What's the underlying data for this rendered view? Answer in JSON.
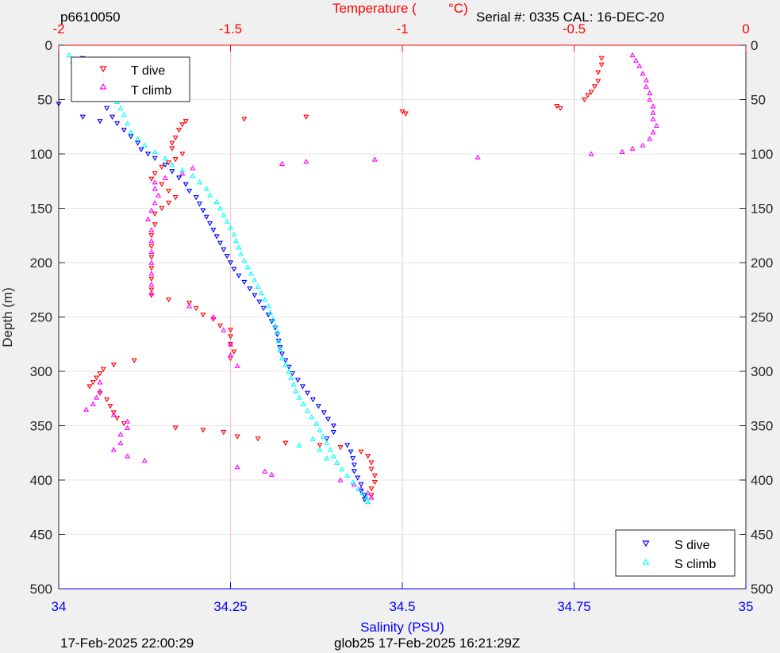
{
  "header": {
    "left_id": "p6610050",
    "serial": "Serial #: 0335  CAL: 16-DEC-20"
  },
  "footer": {
    "left_time": "17-Feb-2025 22:00:29",
    "center_info": "glob25 17-Feb-2025 16:21:29Z"
  },
  "colors": {
    "t_dive": "#ff0000",
    "t_climb": "#ff00ff",
    "s_dive": "#0000ff",
    "s_climb": "#00ffff",
    "temp_axis": "#ff0000",
    "sal_axis": "#0000ff",
    "grid": "#e6e6e6",
    "temp_grid": "#f6c6c6"
  },
  "chart_data": {
    "type": "scatter",
    "title": "",
    "ylabel": "Depth (m)",
    "xlabel_bottom": "Salinity (PSU)",
    "xlabel_top_prefix": "Temperature (",
    "xlabel_top_unit": "°C)",
    "ylim": [
      0,
      500
    ],
    "y_reversed": true,
    "y_ticks": [
      0,
      50,
      100,
      150,
      200,
      250,
      300,
      350,
      400,
      450,
      500
    ],
    "y_tick_labels": [
      "0",
      "50",
      "100",
      "150",
      "200",
      "250",
      "300",
      "350",
      "400",
      "450",
      "500"
    ],
    "x_bottom_lim": [
      34,
      35
    ],
    "x_bottom_ticks": [
      34,
      34.25,
      34.5,
      34.75,
      35
    ],
    "x_bottom_tick_labels": [
      "34",
      "34.25",
      "34.5",
      "34.75",
      "35"
    ],
    "x_top_lim": [
      -2,
      0
    ],
    "x_top_ticks": [
      -2,
      -1.5,
      -1,
      -0.5,
      0
    ],
    "x_top_tick_labels": [
      "-2",
      "-1.5",
      "-1",
      "-0.5",
      "0"
    ],
    "grid": true,
    "legends": [
      {
        "placement": "top-left",
        "entries": [
          "T dive",
          "T climb"
        ]
      },
      {
        "placement": "bottom-right",
        "entries": [
          "S dive",
          "S climb"
        ]
      }
    ],
    "series": [
      {
        "name": "T dive",
        "axis": "top",
        "marker": "triangle-down",
        "points": [
          [
            -0.42,
            12
          ],
          [
            -0.42,
            18
          ],
          [
            -0.43,
            25
          ],
          [
            -0.43,
            33
          ],
          [
            -0.44,
            38
          ],
          [
            -0.45,
            43
          ],
          [
            -0.46,
            46
          ],
          [
            -0.47,
            50
          ],
          [
            -0.55,
            56
          ],
          [
            -0.54,
            58
          ],
          [
            -1.0,
            61
          ],
          [
            -0.99,
            63
          ],
          [
            -1.28,
            66
          ],
          [
            -1.46,
            68
          ],
          [
            -1.63,
            70
          ],
          [
            -1.64,
            73
          ],
          [
            -1.65,
            78
          ],
          [
            -1.66,
            85
          ],
          [
            -1.67,
            90
          ],
          [
            -1.67,
            95
          ],
          [
            -1.64,
            100
          ],
          [
            -1.66,
            105
          ],
          [
            -1.68,
            108
          ],
          [
            -1.7,
            112
          ],
          [
            -1.72,
            118
          ],
          [
            -1.73,
            123
          ],
          [
            -1.7,
            128
          ],
          [
            -1.68,
            134
          ],
          [
            -1.66,
            140
          ],
          [
            -1.68,
            145
          ],
          [
            -1.7,
            150
          ],
          [
            -1.72,
            155
          ],
          [
            -1.72,
            165
          ],
          [
            -1.73,
            175
          ],
          [
            -1.73,
            185
          ],
          [
            -1.73,
            195
          ],
          [
            -1.73,
            205
          ],
          [
            -1.73,
            215
          ],
          [
            -1.73,
            225
          ],
          [
            -1.73,
            230
          ],
          [
            -1.68,
            234
          ],
          [
            -1.62,
            237
          ],
          [
            -1.6,
            242
          ],
          [
            -1.58,
            248
          ],
          [
            -1.55,
            252
          ],
          [
            -1.53,
            258
          ],
          [
            -1.5,
            262
          ],
          [
            -1.5,
            268
          ],
          [
            -1.5,
            275
          ],
          [
            -1.49,
            282
          ],
          [
            -1.5,
            288
          ],
          [
            -1.78,
            290
          ],
          [
            -1.84,
            294
          ],
          [
            -1.87,
            298
          ],
          [
            -1.88,
            302
          ],
          [
            -1.89,
            306
          ],
          [
            -1.9,
            310
          ],
          [
            -1.91,
            314
          ],
          [
            -1.88,
            320
          ],
          [
            -1.86,
            326
          ],
          [
            -1.85,
            332
          ],
          [
            -1.84,
            338
          ],
          [
            -1.83,
            343
          ],
          [
            -1.81,
            348
          ],
          [
            -1.66,
            352
          ],
          [
            -1.58,
            354
          ],
          [
            -1.52,
            356
          ],
          [
            -1.48,
            360
          ],
          [
            -1.42,
            362
          ],
          [
            -1.34,
            366
          ],
          [
            -1.24,
            368
          ],
          [
            -1.18,
            370
          ],
          [
            -1.12,
            374
          ],
          [
            -1.1,
            378
          ],
          [
            -1.09,
            384
          ],
          [
            -1.09,
            390
          ],
          [
            -1.08,
            396
          ],
          [
            -1.08,
            402
          ],
          [
            -1.09,
            408
          ],
          [
            -1.09,
            414
          ]
        ]
      },
      {
        "name": "T climb",
        "axis": "top",
        "marker": "triangle-up",
        "points": [
          [
            -0.33,
            9
          ],
          [
            -0.32,
            14
          ],
          [
            -0.31,
            19
          ],
          [
            -0.3,
            26
          ],
          [
            -0.29,
            32
          ],
          [
            -0.29,
            38
          ],
          [
            -0.28,
            44
          ],
          [
            -0.28,
            50
          ],
          [
            -0.27,
            56
          ],
          [
            -0.27,
            62
          ],
          [
            -0.27,
            68
          ],
          [
            -0.26,
            74
          ],
          [
            -0.27,
            80
          ],
          [
            -0.28,
            86
          ],
          [
            -0.3,
            92
          ],
          [
            -0.33,
            95
          ],
          [
            -0.36,
            98
          ],
          [
            -0.45,
            100
          ],
          [
            -0.78,
            103
          ],
          [
            -1.08,
            105
          ],
          [
            -1.28,
            107
          ],
          [
            -1.35,
            109
          ],
          [
            -1.61,
            113
          ],
          [
            -1.64,
            118
          ],
          [
            -1.69,
            122
          ],
          [
            -1.72,
            126
          ],
          [
            -1.72,
            132
          ],
          [
            -1.71,
            138
          ],
          [
            -1.72,
            145
          ],
          [
            -1.73,
            152
          ],
          [
            -1.74,
            160
          ],
          [
            -1.73,
            170
          ],
          [
            -1.73,
            180
          ],
          [
            -1.73,
            190
          ],
          [
            -1.73,
            200
          ],
          [
            -1.73,
            210
          ],
          [
            -1.73,
            220
          ],
          [
            -1.73,
            228
          ],
          [
            -1.62,
            240
          ],
          [
            -1.55,
            250
          ],
          [
            -1.52,
            262
          ],
          [
            -1.5,
            275
          ],
          [
            -1.5,
            285
          ],
          [
            -1.48,
            295
          ],
          [
            -1.88,
            310
          ],
          [
            -1.88,
            318
          ],
          [
            -1.89,
            324
          ],
          [
            -1.9,
            330
          ],
          [
            -1.92,
            335
          ],
          [
            -1.84,
            340
          ],
          [
            -1.8,
            346
          ],
          [
            -1.8,
            352
          ],
          [
            -1.82,
            358
          ],
          [
            -1.82,
            366
          ],
          [
            -1.84,
            372
          ],
          [
            -1.8,
            378
          ],
          [
            -1.75,
            382
          ],
          [
            -1.48,
            388
          ],
          [
            -1.4,
            392
          ],
          [
            -1.38,
            395
          ],
          [
            -1.18,
            400
          ],
          [
            -1.14,
            404
          ],
          [
            -1.12,
            408
          ],
          [
            -1.1,
            412
          ],
          [
            -1.09,
            416
          ],
          [
            -1.1,
            420
          ]
        ]
      },
      {
        "name": "S dive",
        "axis": "bottom",
        "marker": "triangle-down",
        "points": [
          [
            34.035,
            12
          ],
          [
            34.04,
            25
          ],
          [
            34.045,
            35
          ],
          [
            34.052,
            42
          ],
          [
            34.06,
            50
          ],
          [
            34.07,
            58
          ],
          [
            34.078,
            66
          ],
          [
            34.085,
            72
          ],
          [
            34.095,
            78
          ],
          [
            34.105,
            84
          ],
          [
            34.115,
            90
          ],
          [
            34.12,
            96
          ],
          [
            34.13,
            100
          ],
          [
            34.14,
            104
          ],
          [
            34.155,
            110
          ],
          [
            34.165,
            116
          ],
          [
            34.175,
            122
          ],
          [
            34.185,
            128
          ],
          [
            34.19,
            134
          ],
          [
            34.2,
            140
          ],
          [
            34.205,
            146
          ],
          [
            34.21,
            152
          ],
          [
            34.215,
            158
          ],
          [
            34.22,
            164
          ],
          [
            34.225,
            170
          ],
          [
            34.23,
            176
          ],
          [
            34.235,
            182
          ],
          [
            34.24,
            188
          ],
          [
            34.245,
            194
          ],
          [
            34.25,
            200
          ],
          [
            34.255,
            206
          ],
          [
            34.262,
            212
          ],
          [
            34.27,
            218
          ],
          [
            34.278,
            224
          ],
          [
            34.285,
            230
          ],
          [
            34.292,
            236
          ],
          [
            34.298,
            242
          ],
          [
            34.305,
            248
          ],
          [
            34.31,
            254
          ],
          [
            34.315,
            260
          ],
          [
            34.318,
            266
          ],
          [
            34.32,
            272
          ],
          [
            34.322,
            278
          ],
          [
            34.325,
            284
          ],
          [
            34.33,
            290
          ],
          [
            34.335,
            296
          ],
          [
            34.34,
            302
          ],
          [
            34.348,
            308
          ],
          [
            34.355,
            314
          ],
          [
            34.362,
            320
          ],
          [
            34.37,
            326
          ],
          [
            34.378,
            332
          ],
          [
            34.386,
            338
          ],
          [
            34.392,
            344
          ],
          [
            34.4,
            350
          ],
          [
            34.4,
            356
          ],
          [
            34.39,
            362
          ],
          [
            34.42,
            368
          ],
          [
            34.425,
            374
          ],
          [
            34.428,
            380
          ],
          [
            34.43,
            386
          ],
          [
            34.43,
            392
          ],
          [
            34.435,
            398
          ],
          [
            34.44,
            404
          ],
          [
            34.44,
            410
          ],
          [
            34.445,
            414
          ],
          [
            34.445,
            418
          ],
          [
            34.0,
            54
          ],
          [
            34.035,
            66
          ],
          [
            34.06,
            70
          ]
        ]
      },
      {
        "name": "S climb",
        "axis": "bottom",
        "marker": "triangle-up",
        "points": [
          [
            34.015,
            9
          ],
          [
            34.02,
            15
          ],
          [
            34.028,
            22
          ],
          [
            34.035,
            28
          ],
          [
            34.042,
            33
          ],
          [
            34.052,
            37
          ],
          [
            34.06,
            41
          ],
          [
            34.07,
            44
          ],
          [
            34.075,
            48
          ],
          [
            34.085,
            52
          ],
          [
            34.09,
            58
          ],
          [
            34.095,
            64
          ],
          [
            34.1,
            72
          ],
          [
            34.105,
            80
          ],
          [
            34.115,
            86
          ],
          [
            34.125,
            92
          ],
          [
            34.14,
            98
          ],
          [
            34.155,
            104
          ],
          [
            34.165,
            110
          ],
          [
            34.18,
            115
          ],
          [
            34.195,
            120
          ],
          [
            34.205,
            126
          ],
          [
            34.215,
            132
          ],
          [
            34.22,
            138
          ],
          [
            34.23,
            144
          ],
          [
            34.235,
            150
          ],
          [
            34.24,
            156
          ],
          [
            34.245,
            162
          ],
          [
            34.25,
            168
          ],
          [
            34.255,
            174
          ],
          [
            34.258,
            180
          ],
          [
            34.262,
            186
          ],
          [
            34.265,
            192
          ],
          [
            34.27,
            198
          ],
          [
            34.275,
            204
          ],
          [
            34.28,
            210
          ],
          [
            34.285,
            216
          ],
          [
            34.29,
            222
          ],
          [
            34.295,
            228
          ],
          [
            34.3,
            234
          ],
          [
            34.305,
            240
          ],
          [
            34.308,
            246
          ],
          [
            34.312,
            252
          ],
          [
            34.315,
            258
          ],
          [
            34.318,
            264
          ],
          [
            34.32,
            272
          ],
          [
            34.322,
            280
          ],
          [
            34.325,
            288
          ],
          [
            34.33,
            294
          ],
          [
            34.335,
            300
          ],
          [
            34.338,
            306
          ],
          [
            34.342,
            312
          ],
          [
            34.345,
            318
          ],
          [
            34.35,
            324
          ],
          [
            34.356,
            330
          ],
          [
            34.362,
            336
          ],
          [
            34.368,
            342
          ],
          [
            34.375,
            348
          ],
          [
            34.38,
            354
          ],
          [
            34.385,
            360
          ],
          [
            34.39,
            366
          ],
          [
            34.395,
            372
          ],
          [
            34.4,
            378
          ],
          [
            34.405,
            384
          ],
          [
            34.412,
            390
          ],
          [
            34.42,
            396
          ],
          [
            34.428,
            402
          ],
          [
            34.436,
            408
          ],
          [
            34.442,
            412
          ],
          [
            34.448,
            416
          ],
          [
            34.45,
            420
          ],
          [
            34.35,
            368
          ],
          [
            34.37,
            362
          ],
          [
            34.38,
            372
          ],
          [
            34.39,
            380
          ]
        ]
      }
    ]
  }
}
